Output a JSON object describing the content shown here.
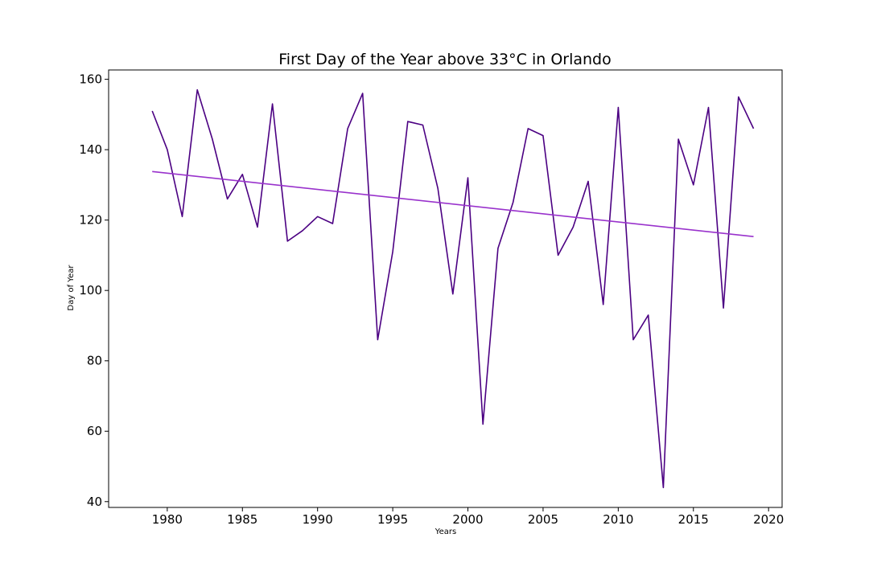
{
  "chart_data": {
    "type": "line",
    "title": "First Day of the Year above 33°C in Orlando",
    "xlabel": "Years",
    "ylabel": "Day of Year",
    "xlim": [
      1976.1,
      2020.9
    ],
    "ylim": [
      38.35,
      162.65
    ],
    "xticks": [
      1980,
      1985,
      1990,
      1995,
      2000,
      2005,
      2010,
      2015,
      2020
    ],
    "yticks": [
      40,
      60,
      80,
      100,
      120,
      140,
      160
    ],
    "grid": false,
    "series": [
      {
        "color": "#4b0082",
        "x": [
          1979,
          1980,
          1981,
          1982,
          1983,
          1984,
          1985,
          1986,
          1987,
          1988,
          1989,
          1990,
          1991,
          1992,
          1993,
          1994,
          1995,
          1996,
          1997,
          1998,
          1999,
          2000,
          2001,
          2002,
          2003,
          2004,
          2005,
          2006,
          2007,
          2008,
          2009,
          2010,
          2011,
          2012,
          2013,
          2014,
          2015,
          2016,
          2017,
          2018,
          2019
        ],
        "y": [
          151,
          140,
          121,
          157,
          143,
          126,
          133,
          118,
          153,
          114,
          117,
          121,
          119,
          146,
          156,
          86,
          111,
          148,
          147,
          129,
          99,
          132,
          62,
          112,
          125,
          146,
          144,
          110,
          118,
          131,
          96,
          152,
          86,
          93,
          44,
          143,
          130,
          152,
          95,
          155,
          146
        ]
      },
      {
        "color": "#9932cc",
        "x": [
          1979,
          2019
        ],
        "y": [
          133.8,
          115.3
        ]
      }
    ]
  }
}
